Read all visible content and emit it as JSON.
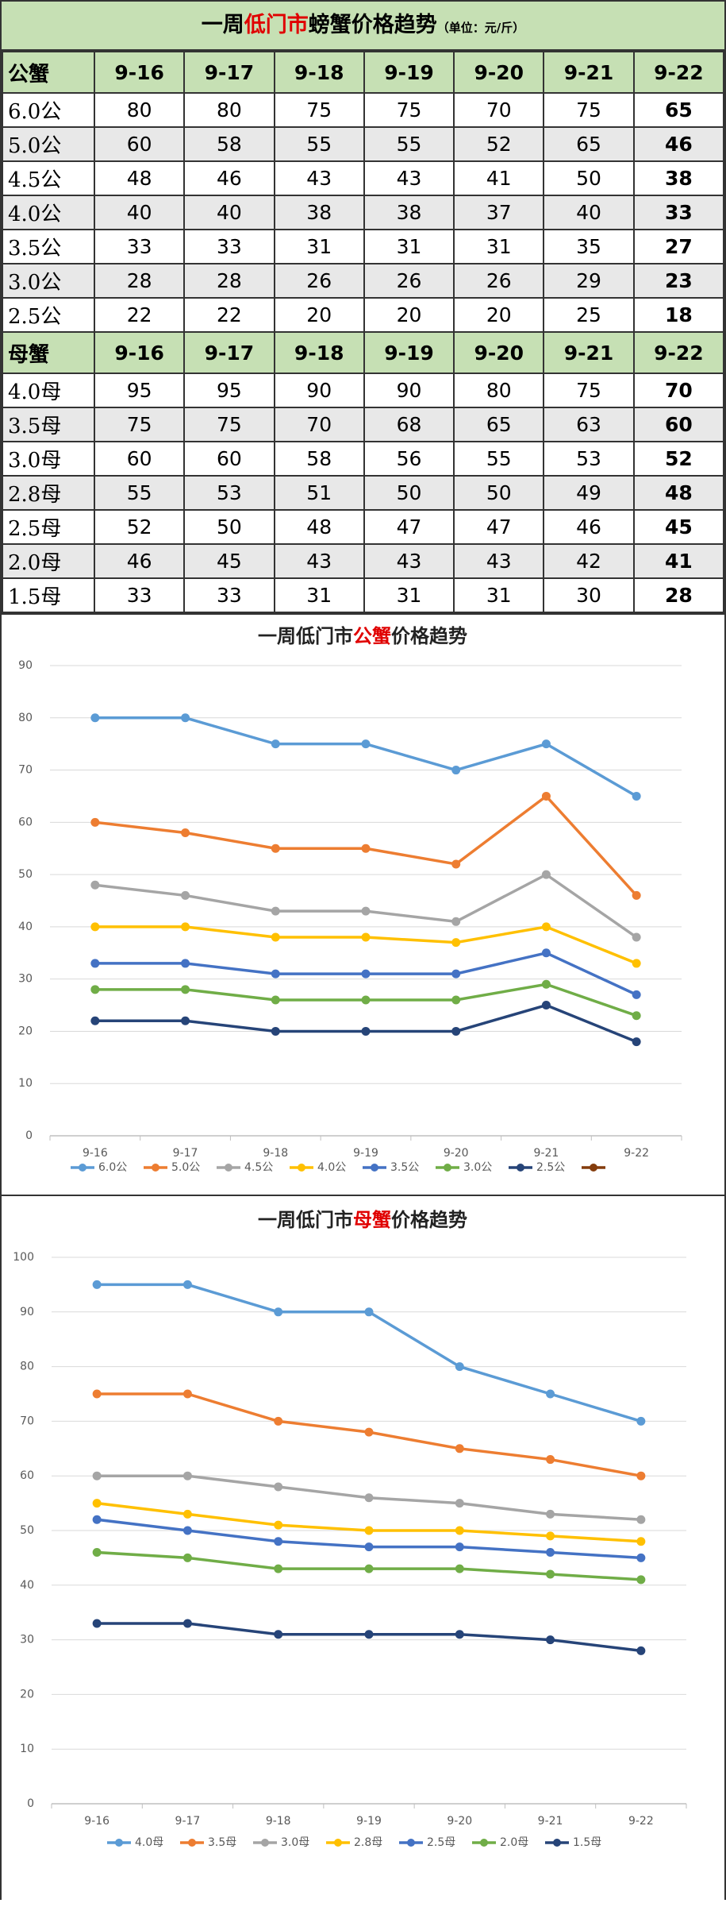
{
  "table": {
    "title": [
      "一周",
      "低门市",
      "螃蟹价格趋势"
    ],
    "unit": "（单位：元/斤）",
    "sections": [
      {
        "header": [
          "公蟹",
          "9-16",
          "9-17",
          "9-18",
          "9-19",
          "9-20",
          "9-21",
          "9-22"
        ],
        "rows": [
          [
            "6.0公",
            80,
            80,
            75,
            75,
            70,
            75,
            65
          ],
          [
            "5.0公",
            60,
            58,
            55,
            55,
            52,
            65,
            46
          ],
          [
            "4.5公",
            48,
            46,
            43,
            43,
            41,
            50,
            38
          ],
          [
            "4.0公",
            40,
            40,
            38,
            38,
            37,
            40,
            33
          ],
          [
            "3.5公",
            33,
            33,
            31,
            31,
            31,
            35,
            27
          ],
          [
            "3.0公",
            28,
            28,
            26,
            26,
            26,
            29,
            23
          ],
          [
            "2.5公",
            22,
            22,
            20,
            20,
            20,
            25,
            18
          ]
        ]
      },
      {
        "header": [
          "母蟹",
          "9-16",
          "9-17",
          "9-18",
          "9-19",
          "9-20",
          "9-21",
          "9-22"
        ],
        "rows": [
          [
            "4.0母",
            95,
            95,
            90,
            90,
            80,
            75,
            70
          ],
          [
            "3.5母",
            75,
            75,
            70,
            68,
            65,
            63,
            60
          ],
          [
            "3.0母",
            60,
            60,
            58,
            56,
            55,
            53,
            52
          ],
          [
            "2.8母",
            55,
            53,
            51,
            50,
            50,
            49,
            48
          ],
          [
            "2.5母",
            52,
            50,
            48,
            47,
            47,
            46,
            45
          ],
          [
            "2.0母",
            46,
            45,
            43,
            43,
            43,
            42,
            41
          ],
          [
            "1.5母",
            33,
            33,
            31,
            31,
            31,
            30,
            28
          ]
        ]
      }
    ]
  },
  "chart_data": [
    {
      "type": "line",
      "title": [
        "一周低门市",
        "公蟹",
        "价格趋势"
      ],
      "categories": [
        "9-16",
        "9-17",
        "9-18",
        "9-19",
        "9-20",
        "9-21",
        "9-22"
      ],
      "series": [
        {
          "name": "6.0公",
          "color": "#5b9bd5",
          "values": [
            80,
            80,
            75,
            75,
            70,
            75,
            65
          ]
        },
        {
          "name": "5.0公",
          "color": "#ed7d31",
          "values": [
            60,
            58,
            55,
            55,
            52,
            65,
            46
          ]
        },
        {
          "name": "4.5公",
          "color": "#a5a5a5",
          "values": [
            48,
            46,
            43,
            43,
            41,
            50,
            38
          ]
        },
        {
          "name": "4.0公",
          "color": "#ffc000",
          "values": [
            40,
            40,
            38,
            38,
            37,
            40,
            33
          ]
        },
        {
          "name": "3.5公",
          "color": "#4472c4",
          "values": [
            33,
            33,
            31,
            31,
            31,
            35,
            27
          ]
        },
        {
          "name": "3.0公",
          "color": "#70ad47",
          "values": [
            28,
            28,
            26,
            26,
            26,
            29,
            23
          ]
        },
        {
          "name": "2.5公",
          "color": "#264478",
          "values": [
            22,
            22,
            20,
            20,
            20,
            25,
            18
          ]
        }
      ],
      "ylim": [
        0,
        90
      ],
      "yticks": [
        0,
        10,
        20,
        30,
        40,
        50,
        60,
        70,
        80,
        90
      ],
      "grid": true,
      "legend": "bottom"
    },
    {
      "type": "line",
      "title": [
        "一周低门市",
        "母蟹",
        "价格趋势"
      ],
      "categories": [
        "9-16",
        "9-17",
        "9-18",
        "9-19",
        "9-20",
        "9-21",
        "9-22"
      ],
      "series": [
        {
          "name": "4.0母",
          "color": "#5b9bd5",
          "values": [
            95,
            95,
            90,
            90,
            80,
            75,
            70
          ]
        },
        {
          "name": "3.5母",
          "color": "#ed7d31",
          "values": [
            75,
            75,
            70,
            68,
            65,
            63,
            60
          ]
        },
        {
          "name": "3.0母",
          "color": "#a5a5a5",
          "values": [
            60,
            60,
            58,
            56,
            55,
            53,
            52
          ]
        },
        {
          "name": "2.8母",
          "color": "#ffc000",
          "values": [
            55,
            53,
            51,
            50,
            50,
            49,
            48
          ]
        },
        {
          "name": "2.5母",
          "color": "#4472c4",
          "values": [
            52,
            50,
            48,
            47,
            47,
            46,
            45
          ]
        },
        {
          "name": "2.0母",
          "color": "#70ad47",
          "values": [
            46,
            45,
            43,
            43,
            43,
            42,
            41
          ]
        },
        {
          "name": "1.5母",
          "color": "#264478",
          "values": [
            33,
            33,
            31,
            31,
            31,
            30,
            28
          ]
        }
      ],
      "ylim": [
        0,
        100
      ],
      "yticks": [
        0,
        10,
        20,
        30,
        40,
        50,
        60,
        70,
        80,
        90,
        100
      ],
      "grid": true,
      "legend": "bottom"
    }
  ]
}
